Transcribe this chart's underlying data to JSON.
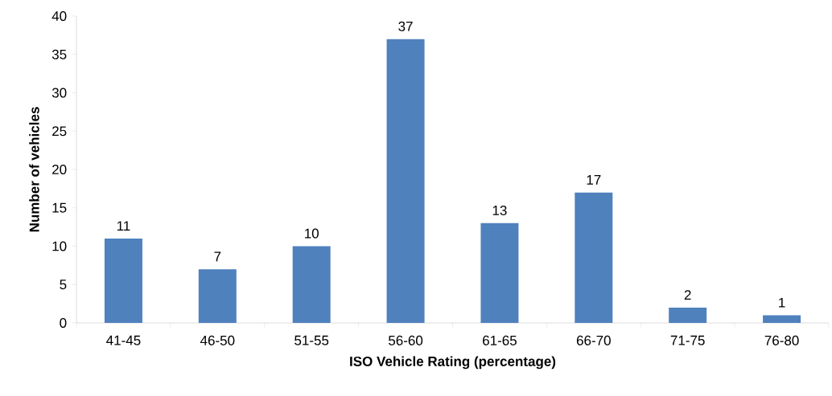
{
  "chart_data": {
    "type": "bar",
    "xlabel": "ISO Vehicle Rating (percentage)",
    "ylabel": "Number of vehicles",
    "categories": [
      "41-45",
      "46-50",
      "51-55",
      "56-60",
      "61-65",
      "66-70",
      "71-75",
      "76-80"
    ],
    "values": [
      11,
      7,
      10,
      37,
      13,
      17,
      2,
      1
    ],
    "color": "#4f81bd",
    "ylim": [
      0,
      40
    ],
    "yticks": [
      0,
      5,
      10,
      15,
      20,
      25,
      30,
      35,
      40
    ],
    "data_labels": true
  }
}
